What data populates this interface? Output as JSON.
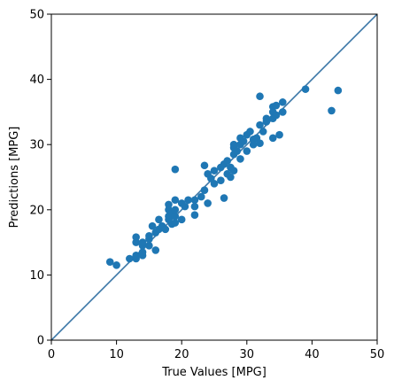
{
  "chart_data": {
    "type": "scatter",
    "title": "",
    "xlabel": "True Values [MPG]",
    "ylabel": "Predictions [MPG]",
    "xlim": [
      0,
      50
    ],
    "ylim": [
      0,
      50
    ],
    "xticks": [
      0,
      10,
      20,
      30,
      40,
      50
    ],
    "yticks": [
      0,
      10,
      20,
      30,
      40,
      50
    ],
    "xtick_labels": [
      "0",
      "10",
      "20",
      "30",
      "40",
      "50"
    ],
    "ytick_labels": [
      "0",
      "10",
      "20",
      "30",
      "40",
      "50"
    ],
    "grid": false,
    "legend": "none",
    "colors": {
      "points": "#1f77b4",
      "reference_line": "#3a76a6"
    },
    "reference_line": {
      "from": [
        0,
        0
      ],
      "to": [
        50,
        50
      ]
    },
    "series": [
      {
        "points": [
          [
            9.0,
            12.0
          ],
          [
            10.0,
            11.5
          ],
          [
            12.0,
            12.5
          ],
          [
            13.0,
            12.5
          ],
          [
            13.0,
            13.0
          ],
          [
            13.0,
            15.0
          ],
          [
            13.0,
            15.8
          ],
          [
            14.0,
            13.0
          ],
          [
            14.0,
            13.5
          ],
          [
            14.0,
            14.5
          ],
          [
            14.0,
            15.0
          ],
          [
            15.0,
            14.5
          ],
          [
            15.0,
            15.5
          ],
          [
            15.0,
            16.0
          ],
          [
            15.5,
            17.5
          ],
          [
            16.0,
            13.8
          ],
          [
            16.0,
            16.5
          ],
          [
            16.5,
            17.0
          ],
          [
            16.5,
            18.5
          ],
          [
            17.0,
            17.5
          ],
          [
            17.5,
            17.0
          ],
          [
            18.0,
            18.5
          ],
          [
            18.0,
            19.0
          ],
          [
            18.0,
            20.0
          ],
          [
            18.0,
            20.8
          ],
          [
            18.5,
            17.8
          ],
          [
            18.5,
            19.5
          ],
          [
            19.0,
            18.0
          ],
          [
            19.0,
            19.0
          ],
          [
            19.0,
            20.0
          ],
          [
            19.0,
            21.5
          ],
          [
            19.0,
            26.2
          ],
          [
            20.0,
            18.5
          ],
          [
            20.0,
            21.0
          ],
          [
            20.5,
            20.5
          ],
          [
            21.0,
            21.5
          ],
          [
            22.0,
            20.5
          ],
          [
            22.0,
            21.5
          ],
          [
            22.0,
            19.2
          ],
          [
            23.0,
            22.0
          ],
          [
            23.5,
            26.8
          ],
          [
            23.5,
            23.0
          ],
          [
            24.0,
            21.0
          ],
          [
            24.0,
            25.5
          ],
          [
            24.5,
            24.8
          ],
          [
            25.0,
            26.0
          ],
          [
            25.0,
            24.0
          ],
          [
            26.0,
            26.5
          ],
          [
            26.0,
            24.5
          ],
          [
            26.5,
            27.0
          ],
          [
            26.5,
            21.8
          ],
          [
            27.0,
            25.5
          ],
          [
            27.0,
            27.5
          ],
          [
            27.5,
            25.0
          ],
          [
            27.5,
            26.5
          ],
          [
            28.0,
            28.5
          ],
          [
            28.0,
            29.5
          ],
          [
            28.0,
            30.0
          ],
          [
            28.0,
            26.0
          ],
          [
            28.5,
            29.0
          ],
          [
            29.0,
            30.0
          ],
          [
            29.0,
            27.8
          ],
          [
            29.0,
            31.0
          ],
          [
            29.5,
            30.5
          ],
          [
            30.0,
            31.5
          ],
          [
            30.0,
            29.0
          ],
          [
            30.5,
            32.0
          ],
          [
            31.0,
            30.0
          ],
          [
            31.0,
            30.8
          ],
          [
            31.5,
            31.0
          ],
          [
            32.0,
            37.4
          ],
          [
            32.0,
            33.0
          ],
          [
            32.0,
            30.2
          ],
          [
            32.5,
            32.0
          ],
          [
            33.0,
            34.0
          ],
          [
            33.0,
            33.5
          ],
          [
            34.0,
            35.8
          ],
          [
            34.0,
            35.0
          ],
          [
            34.0,
            34.0
          ],
          [
            34.0,
            31.0
          ],
          [
            34.5,
            36.0
          ],
          [
            34.5,
            34.5
          ],
          [
            35.0,
            31.5
          ],
          [
            35.5,
            36.5
          ],
          [
            35.5,
            35.0
          ],
          [
            39.0,
            38.5
          ],
          [
            43.0,
            35.2
          ],
          [
            44.0,
            38.3
          ]
        ]
      }
    ]
  }
}
